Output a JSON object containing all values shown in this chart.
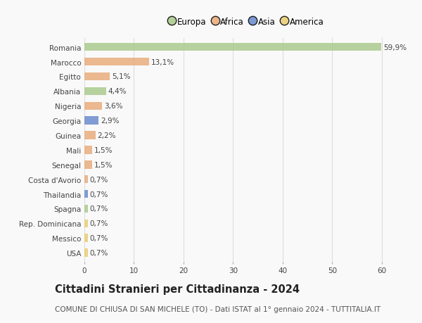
{
  "countries": [
    "Romania",
    "Marocco",
    "Egitto",
    "Albania",
    "Nigeria",
    "Georgia",
    "Guinea",
    "Mali",
    "Senegal",
    "Costa d'Avorio",
    "Thailandia",
    "Spagna",
    "Rep. Dominicana",
    "Messico",
    "USA"
  ],
  "values": [
    59.9,
    13.1,
    5.1,
    4.4,
    3.6,
    2.9,
    2.2,
    1.5,
    1.5,
    0.7,
    0.7,
    0.7,
    0.7,
    0.7,
    0.7
  ],
  "labels": [
    "59,9%",
    "13,1%",
    "5,1%",
    "4,4%",
    "3,6%",
    "2,9%",
    "2,2%",
    "1,5%",
    "1,5%",
    "0,7%",
    "0,7%",
    "0,7%",
    "0,7%",
    "0,7%",
    "0,7%"
  ],
  "continents": [
    "Europa",
    "Africa",
    "Africa",
    "Europa",
    "Africa",
    "Asia",
    "Africa",
    "Africa",
    "Africa",
    "Africa",
    "Asia",
    "Europa",
    "America",
    "America",
    "America"
  ],
  "continent_colors": {
    "Europa": "#a8c98a",
    "Africa": "#e8aa78",
    "Asia": "#6688cc",
    "America": "#e8cc70"
  },
  "legend_order": [
    "Europa",
    "Africa",
    "Asia",
    "America"
  ],
  "title": "Cittadini Stranieri per Cittadinanza - 2024",
  "subtitle": "COMUNE DI CHIUSA DI SAN MICHELE (TO) - Dati ISTAT al 1° gennaio 2024 - TUTTITALIA.IT",
  "xlim": [
    0,
    63
  ],
  "xticks": [
    0,
    10,
    20,
    30,
    40,
    50,
    60
  ],
  "background_color": "#f9f9f9",
  "grid_color": "#dddddd",
  "bar_height": 0.55,
  "title_fontsize": 10.5,
  "subtitle_fontsize": 7.5,
  "label_fontsize": 7.5,
  "tick_fontsize": 7.5,
  "legend_fontsize": 8.5
}
